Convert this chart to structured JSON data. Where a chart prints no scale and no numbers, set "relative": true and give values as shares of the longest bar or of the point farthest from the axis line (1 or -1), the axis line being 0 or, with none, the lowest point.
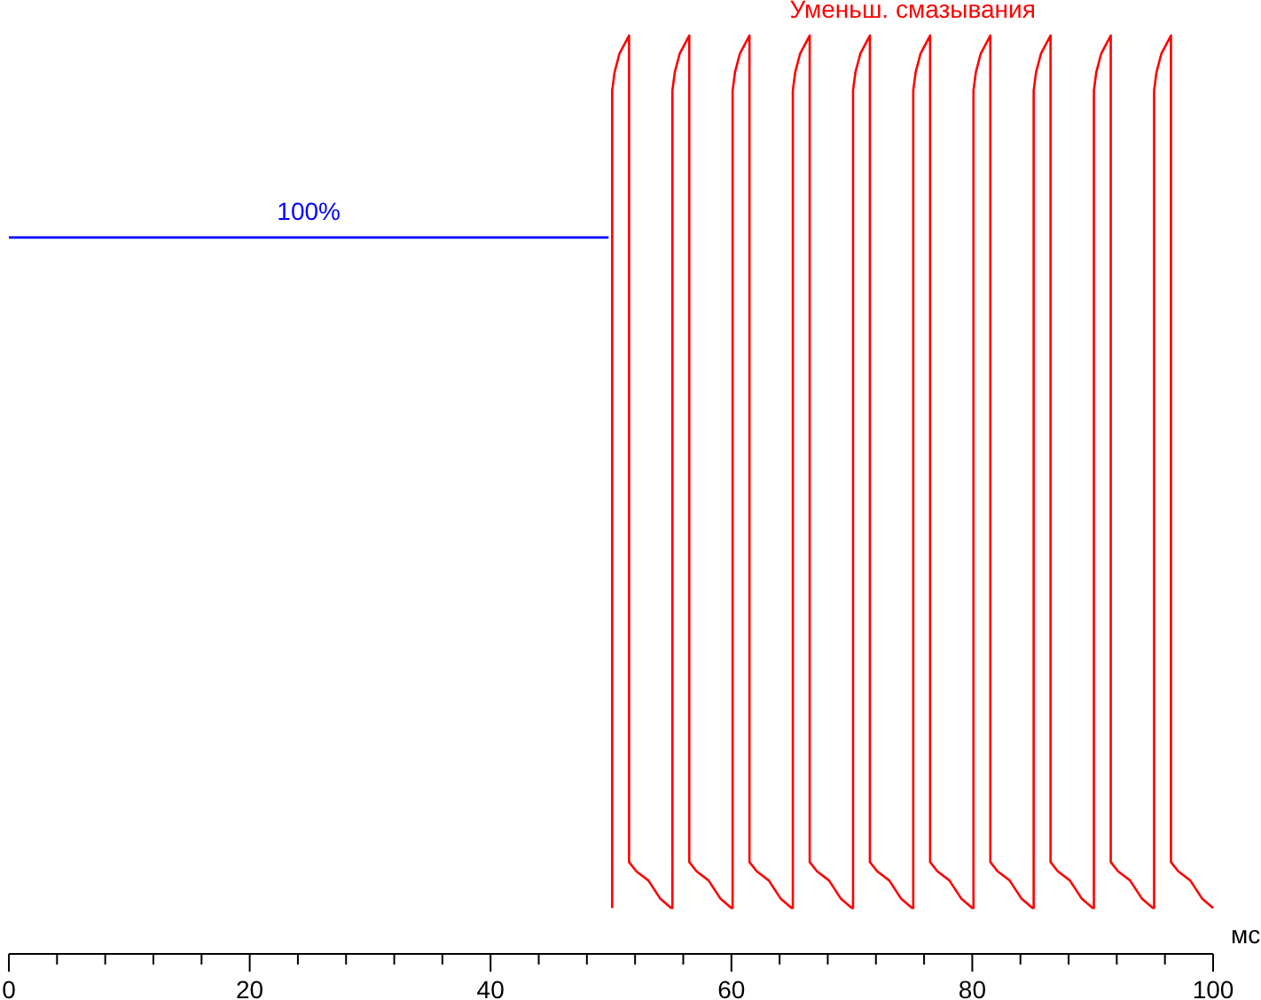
{
  "chart_data": {
    "type": "line",
    "relative": true,
    "xlabel": "мс",
    "grid": false,
    "tick_labels": "x",
    "xlim": [
      0,
      100
    ],
    "xticks": [
      0,
      {
        "value": 4,
        "label": null
      },
      {
        "value": 8,
        "label": null
      },
      {
        "value": 12,
        "label": null
      },
      {
        "value": 16,
        "label": null
      },
      20,
      {
        "value": 24,
        "label": null
      },
      {
        "value": 28,
        "label": null
      },
      {
        "value": 32,
        "label": null
      },
      {
        "value": 36,
        "label": null
      },
      40,
      {
        "value": 44,
        "label": null
      },
      {
        "value": 48,
        "label": null
      },
      {
        "value": 52,
        "label": null
      },
      {
        "value": 56,
        "label": null
      },
      60,
      {
        "value": 64,
        "label": null
      },
      {
        "value": 68,
        "label": null
      },
      {
        "value": 72,
        "label": null
      },
      {
        "value": 76,
        "label": null
      },
      80,
      {
        "value": 84,
        "label": null
      },
      {
        "value": 88,
        "label": null
      },
      {
        "value": 92,
        "label": null
      },
      {
        "value": 96,
        "label": null
      },
      100
    ],
    "series": [
      {
        "name": "100%",
        "color": "#0000ff",
        "x": [
          0,
          10,
          20,
          30,
          40,
          49.8
        ],
        "values": [
          0.78,
          0.78,
          0.78,
          0.78,
          0.78,
          0.78
        ]
      },
      {
        "name": "Уменьш. смазывания",
        "color": "#ff0000",
        "x": [
          50.1,
          50.1,
          50.3,
          50.7,
          51.1,
          51.5,
          51.5,
          52.1,
          53.1,
          54.1,
          55.0,
          55.1,
          55.1,
          55.3,
          55.7,
          56.1,
          56.5,
          56.5,
          57.1,
          58.1,
          59.1,
          60.0,
          60.1,
          60.1,
          60.3,
          60.7,
          61.1,
          61.5,
          61.5,
          62.1,
          63.1,
          64.1,
          65.0,
          65.1,
          65.1,
          65.3,
          65.7,
          66.1,
          66.5,
          66.5,
          67.1,
          68.1,
          69.1,
          70.0,
          70.1,
          70.1,
          70.3,
          70.7,
          71.1,
          71.5,
          71.5,
          72.1,
          73.1,
          74.1,
          75.0,
          75.1,
          75.1,
          75.3,
          75.7,
          76.1,
          76.5,
          76.5,
          77.1,
          78.1,
          79.1,
          80.0,
          80.1,
          80.1,
          80.3,
          80.7,
          81.1,
          81.5,
          81.5,
          82.1,
          83.1,
          84.1,
          85.0,
          85.1,
          85.1,
          85.3,
          85.7,
          86.1,
          86.5,
          86.5,
          87.1,
          88.1,
          89.1,
          90.0,
          90.1,
          90.1,
          90.3,
          90.7,
          91.1,
          91.5,
          91.5,
          92.1,
          93.1,
          94.1,
          95.0,
          95.1,
          95.1,
          95.3,
          95.7,
          96.1,
          96.5,
          96.5,
          97.1,
          98.1,
          99.1,
          100.0
        ],
        "values": [
          0.05,
          0.94,
          0.96,
          0.98,
          0.99,
          1,
          0.1,
          0.09,
          0.08,
          0.06,
          0.05,
          0.05,
          0.94,
          0.96,
          0.98,
          0.99,
          1,
          0.1,
          0.09,
          0.08,
          0.06,
          0.05,
          0.05,
          0.94,
          0.96,
          0.98,
          0.99,
          1,
          0.1,
          0.09,
          0.08,
          0.06,
          0.05,
          0.05,
          0.94,
          0.96,
          0.98,
          0.99,
          1,
          0.1,
          0.09,
          0.08,
          0.06,
          0.05,
          0.05,
          0.94,
          0.96,
          0.98,
          0.99,
          1,
          0.1,
          0.09,
          0.08,
          0.06,
          0.05,
          0.05,
          0.94,
          0.96,
          0.98,
          0.99,
          1,
          0.1,
          0.09,
          0.08,
          0.06,
          0.05,
          0.05,
          0.94,
          0.96,
          0.98,
          0.99,
          1,
          0.1,
          0.09,
          0.08,
          0.06,
          0.05,
          0.05,
          0.94,
          0.96,
          0.98,
          0.99,
          1,
          0.1,
          0.09,
          0.08,
          0.06,
          0.05,
          0.05,
          0.94,
          0.96,
          0.98,
          0.99,
          1,
          0.1,
          0.09,
          0.08,
          0.06,
          0.05,
          0.05,
          0.94,
          0.96,
          0.98,
          0.99,
          1,
          0.1,
          0.09,
          0.08,
          0.06,
          0.05
        ]
      }
    ]
  }
}
